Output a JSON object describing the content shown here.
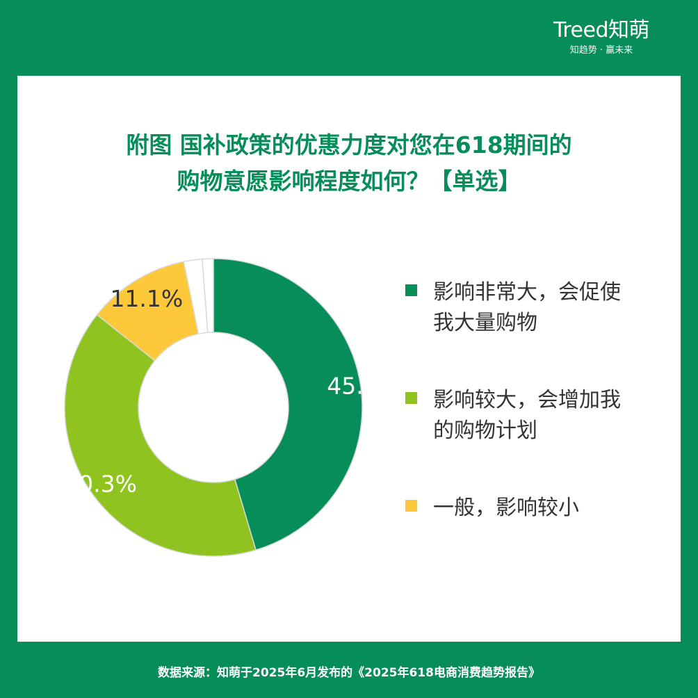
{
  "brand": {
    "name": "Treed知萌",
    "tagline": "知趋势 · 赢未来"
  },
  "title": {
    "line1": "附图  国补政策的优惠力度对您在618期间的",
    "line2": "购物意愿影响程度如何？【单选】"
  },
  "chart_data": {
    "type": "pie",
    "style": "donut",
    "categories": [
      "影响非常大，会促使我大量购物",
      "影响较大，会增加我的购物计划",
      "一般，影响较小"
    ],
    "legend_lines": [
      [
        "影响非常大，会促使",
        "我大量购物"
      ],
      [
        "影响较大，会增加我",
        "的购物计划"
      ],
      [
        "一般，影响较小"
      ]
    ],
    "values": [
      45.4,
      40.3,
      11.1,
      2.0,
      1.2
    ],
    "labels": [
      "45.4%",
      "40.3%",
      "11.1%",
      "",
      ""
    ],
    "colors": [
      "#078d5a",
      "#8fc31f",
      "#fdc93a",
      "#ffffff",
      "#ffffff"
    ],
    "legend_position": "right"
  },
  "footer": {
    "source": "数据来源：知萌于2025年6月发布的《2025年618电商消费趋势报告》"
  }
}
